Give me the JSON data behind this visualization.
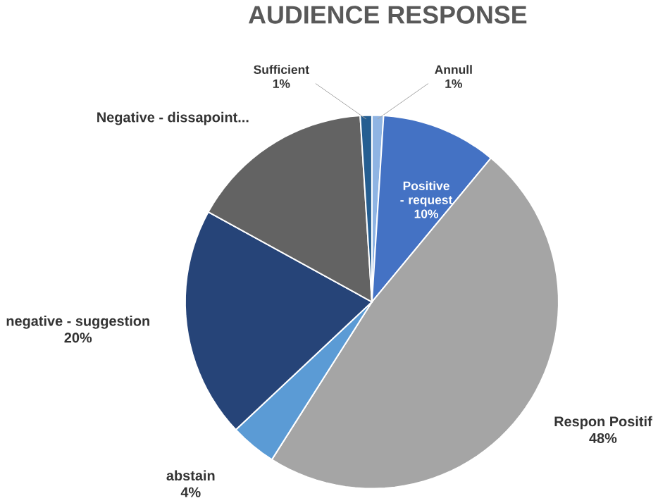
{
  "chart_data": {
    "type": "pie",
    "title": "AUDIENCE RESPONSE",
    "categories": [
      "Annull",
      "Positive - request",
      "Respon Positif",
      "abstain",
      "negative - suggestion",
      "Negative - dissapoint...",
      "Sufficient"
    ],
    "values": [
      1,
      10,
      48,
      4,
      20,
      16,
      1
    ],
    "value_labels": [
      "1%",
      "10%",
      "48%",
      "4%",
      "20%",
      null,
      "1%"
    ],
    "colors": [
      "#8fb4e3",
      "#4472c4",
      "#a5a5a5",
      "#5b9bd5",
      "#264478",
      "#636363",
      "#255e91"
    ]
  }
}
